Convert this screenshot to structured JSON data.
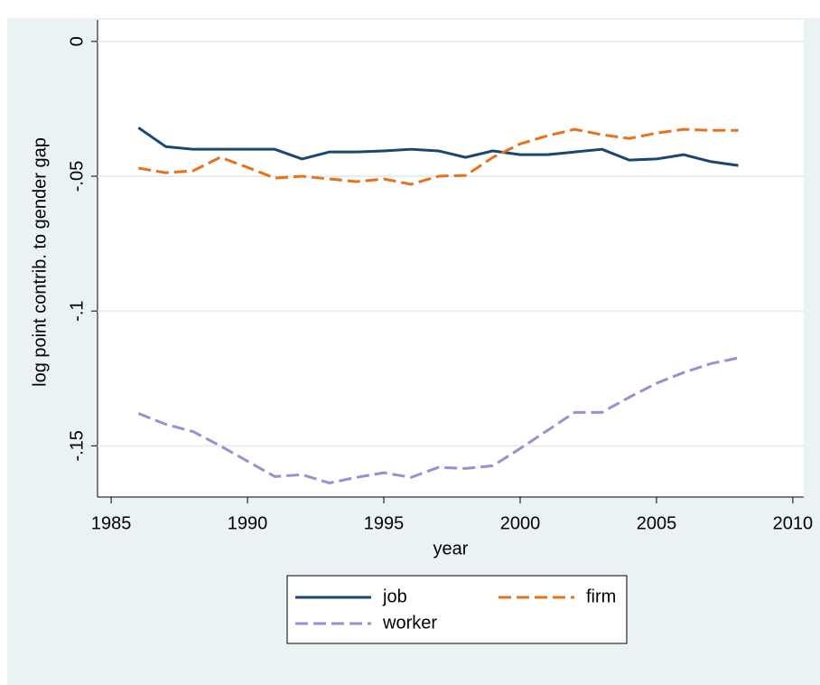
{
  "chart_data": {
    "type": "line",
    "x_label": "year",
    "y_label": "log point contrib. to gender gap",
    "x": [
      1986,
      1987,
      1988,
      1989,
      1990,
      1991,
      1992,
      1993,
      1994,
      1995,
      1996,
      1997,
      1998,
      1999,
      2000,
      2001,
      2002,
      2003,
      2004,
      2005,
      2006,
      2007,
      2008
    ],
    "series": [
      {
        "name": "job",
        "color": "#1a476f",
        "dash": false,
        "values": [
          -0.032,
          -0.039,
          -0.04,
          -0.04,
          -0.04,
          -0.04,
          -0.0436,
          -0.041,
          -0.041,
          -0.0406,
          -0.04,
          -0.0406,
          -0.043,
          -0.0406,
          -0.042,
          -0.042,
          -0.041,
          -0.04,
          -0.044,
          -0.0436,
          -0.042,
          -0.0446,
          -0.046
        ]
      },
      {
        "name": "firm",
        "color": "#e8711b",
        "dash": true,
        "values": [
          -0.047,
          -0.0487,
          -0.048,
          -0.043,
          -0.0467,
          -0.0507,
          -0.05,
          -0.051,
          -0.052,
          -0.051,
          -0.053,
          -0.05,
          -0.0497,
          -0.043,
          -0.038,
          -0.035,
          -0.0326,
          -0.0346,
          -0.036,
          -0.034,
          -0.0326,
          -0.033,
          -0.033
        ]
      },
      {
        "name": "worker",
        "color": "#9a90d0",
        "dash": true,
        "values": [
          -0.138,
          -0.142,
          -0.1447,
          -0.15,
          -0.1557,
          -0.1614,
          -0.1607,
          -0.1638,
          -0.1617,
          -0.16,
          -0.1617,
          -0.158,
          -0.1584,
          -0.1574,
          -0.151,
          -0.1443,
          -0.1376,
          -0.1376,
          -0.132,
          -0.1268,
          -0.1228,
          -0.1195,
          -0.1174
        ]
      }
    ],
    "xlim": [
      1984.5,
      2010.4
    ],
    "ylim": [
      -0.169,
      0.008
    ],
    "xticks": [
      1985,
      1990,
      1995,
      2000,
      2005,
      2010
    ],
    "yticks": [
      0,
      {
        "value": -0.05,
        "label": "-.05"
      },
      {
        "value": -0.1,
        "label": "-.1"
      },
      {
        "value": -0.15,
        "label": "-.15"
      }
    ],
    "grid": true
  }
}
